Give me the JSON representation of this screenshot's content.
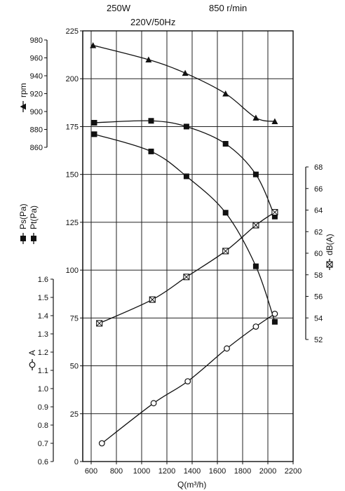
{
  "header": {
    "power": "250W",
    "voltage": "220V/50Hz",
    "speed": "850 r/min"
  },
  "chart_data": {
    "type": "line",
    "title": "",
    "x": {
      "label": "Q(m³/h)",
      "range": [
        600,
        2200
      ],
      "ticks": [
        "600",
        "800",
        "1000",
        "1200",
        "1400",
        "1600",
        "1800",
        "2000",
        "2200"
      ]
    },
    "axes": {
      "pressure": {
        "label_ps": "Ps(Pa)",
        "label_pt": "Pt(Pa)",
        "range": [
          0,
          225
        ],
        "ticks": [
          "0",
          "25",
          "50",
          "75",
          "100",
          "125",
          "150",
          "175",
          "200",
          "225"
        ]
      },
      "rpm": {
        "label": "rpm",
        "range": [
          860,
          980
        ],
        "ticks": [
          "860",
          "880",
          "900",
          "920",
          "940",
          "960",
          "980"
        ]
      },
      "current": {
        "label": "A",
        "range": [
          0.6,
          1.6
        ],
        "ticks": [
          "0.6",
          "0.7",
          "0.8",
          "0.9",
          "1.0",
          "1.1",
          "1.2",
          "1.3",
          "1.4",
          "1.5",
          "1.6"
        ]
      },
      "noise": {
        "label": "dB(A)",
        "range": [
          52,
          68
        ],
        "ticks": [
          "52",
          "54",
          "56",
          "58",
          "60",
          "62",
          "64",
          "66",
          "68"
        ]
      }
    },
    "grid": true,
    "series": [
      {
        "key": "rpm",
        "axis": "rpm",
        "marker": "triangle",
        "x": [
          615,
          1055,
          1345,
          1665,
          1905,
          2055
        ],
        "y": [
          974,
          958,
          943,
          920,
          893,
          889
        ]
      },
      {
        "key": "pt",
        "axis": "pressure",
        "marker": "square",
        "x": [
          625,
          1075,
          1355,
          1665,
          1905,
          2055
        ],
        "y": [
          177,
          178,
          175,
          166,
          150,
          128
        ]
      },
      {
        "key": "ps",
        "axis": "pressure",
        "marker": "square",
        "x": [
          625,
          1075,
          1355,
          1665,
          1905,
          2055
        ],
        "y": [
          171,
          162,
          149,
          130,
          102,
          73
        ]
      },
      {
        "key": "db",
        "axis": "noise",
        "marker": "boxed-x",
        "x": [
          665,
          1085,
          1355,
          1665,
          1905,
          2055
        ],
        "y": [
          53.5,
          55.7,
          57.8,
          60.2,
          62.6,
          63.8
        ]
      },
      {
        "key": "current",
        "axis": "current",
        "marker": "circle",
        "x": [
          685,
          1095,
          1365,
          1675,
          1905,
          2055
        ],
        "y": [
          0.7,
          0.92,
          1.04,
          1.22,
          1.34,
          1.41
        ]
      }
    ]
  }
}
